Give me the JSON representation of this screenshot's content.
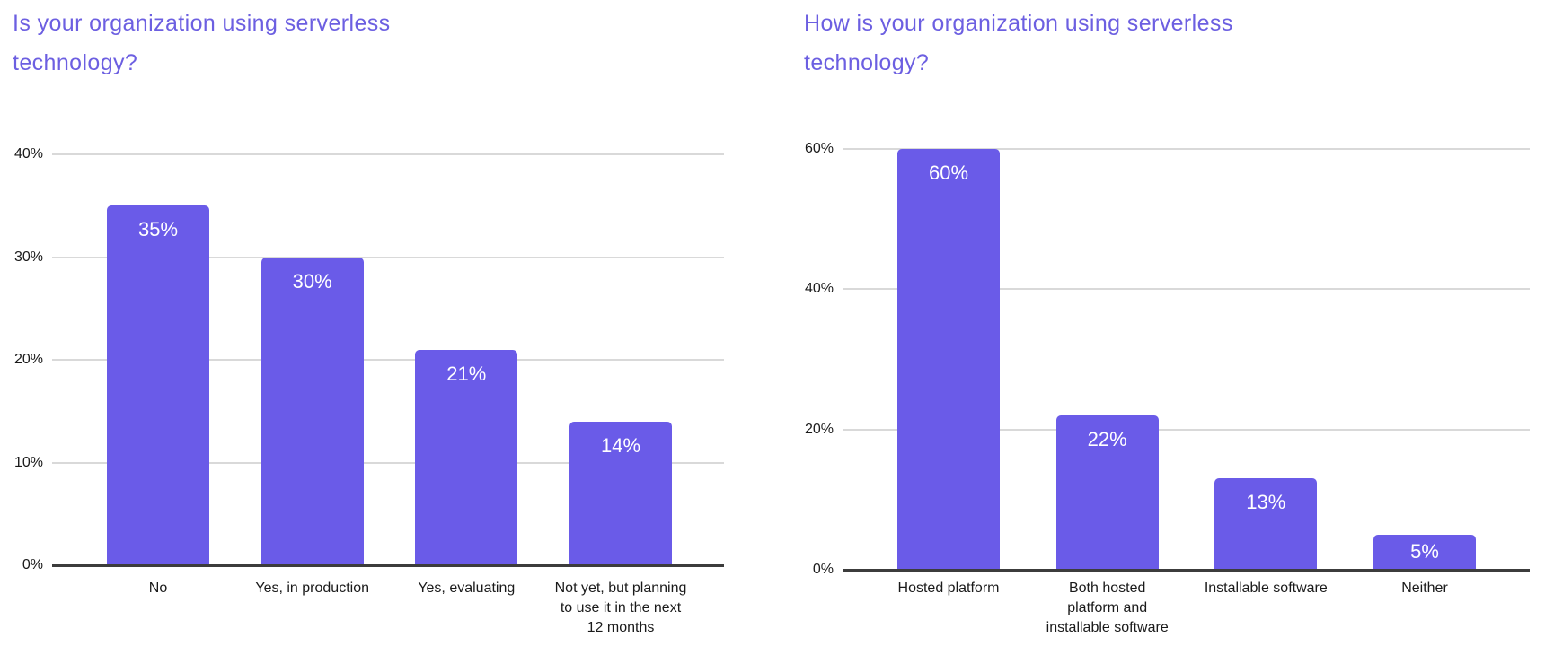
{
  "colors": {
    "bar": "#6A5BE8",
    "title": "#6C5FE1",
    "gridline": "#D9D9D9",
    "axis_line": "#3C3C3C",
    "axis_text": "#1A1A1A",
    "value_label_text": "#FFFFFF",
    "background": "#FFFFFF"
  },
  "chart_data": [
    {
      "type": "bar",
      "title": "Is your organization using serverless technology?",
      "categories": [
        "No",
        "Yes, in production",
        "Yes, evaluating",
        "Not yet, but planning to use it in the next 12 months"
      ],
      "category_lines": [
        [
          "No"
        ],
        [
          "Yes, in production"
        ],
        [
          "Yes, evaluating"
        ],
        [
          "Not yet, but planning",
          "to use it in the next",
          "12 months"
        ]
      ],
      "values": [
        35,
        30,
        21,
        14
      ],
      "value_labels": [
        "35%",
        "30%",
        "21%",
        "14%"
      ],
      "xlabel": "",
      "ylabel": "",
      "ylim": [
        0,
        40
      ],
      "ytick_values": [
        0,
        10,
        20,
        30,
        40
      ],
      "ytick_labels": [
        "0%",
        "10%",
        "20%",
        "30%",
        "40%"
      ],
      "grid": true,
      "legend": "none"
    },
    {
      "type": "bar",
      "title": "How is your organization using serverless technology?",
      "categories": [
        "Hosted platform",
        "Both hosted platform and installable software",
        "Installable software",
        "Neither"
      ],
      "category_lines": [
        [
          "Hosted platform"
        ],
        [
          "Both hosted",
          "platform and",
          "installable software"
        ],
        [
          "Installable software"
        ],
        [
          "Neither"
        ]
      ],
      "values": [
        60,
        22,
        13,
        5
      ],
      "value_labels": [
        "60%",
        "22%",
        "13%",
        "5%"
      ],
      "xlabel": "",
      "ylabel": "",
      "ylim": [
        0,
        60
      ],
      "ytick_values": [
        0,
        20,
        40,
        60
      ],
      "ytick_labels": [
        "0%",
        "20%",
        "40%",
        "60%"
      ],
      "grid": true,
      "legend": "none"
    }
  ]
}
